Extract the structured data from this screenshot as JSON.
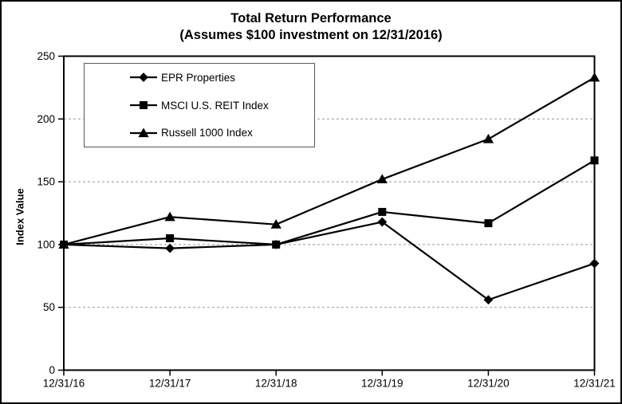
{
  "chart_data": {
    "type": "line",
    "title": "Total Return Performance",
    "subtitle": "(Assumes $100 investment on 12/31/2016)",
    "xlabel": "",
    "ylabel": "Index Value",
    "categories": [
      "12/31/16",
      "12/31/17",
      "12/31/18",
      "12/31/19",
      "12/31/20",
      "12/31/21"
    ],
    "series": [
      {
        "name": "EPR Properties",
        "marker": "diamond",
        "color": "#000000",
        "values": [
          100,
          97,
          100,
          118,
          56,
          85
        ]
      },
      {
        "name": "MSCI U.S. REIT Index",
        "marker": "square",
        "color": "#000000",
        "values": [
          100,
          105,
          100,
          126,
          117,
          167
        ]
      },
      {
        "name": "Russell 1000 Index",
        "marker": "triangle",
        "color": "#000000",
        "values": [
          100,
          122,
          116,
          152,
          184,
          233
        ]
      }
    ],
    "ylim": [
      0,
      250
    ],
    "yticks": [
      0,
      50,
      100,
      150,
      200,
      250
    ],
    "grid": "horizontal-dashed",
    "grid_color": "#999999",
    "line_color": "#000000",
    "background_color": "#ffffff",
    "legend_position": "top-left-inside-plot"
  }
}
